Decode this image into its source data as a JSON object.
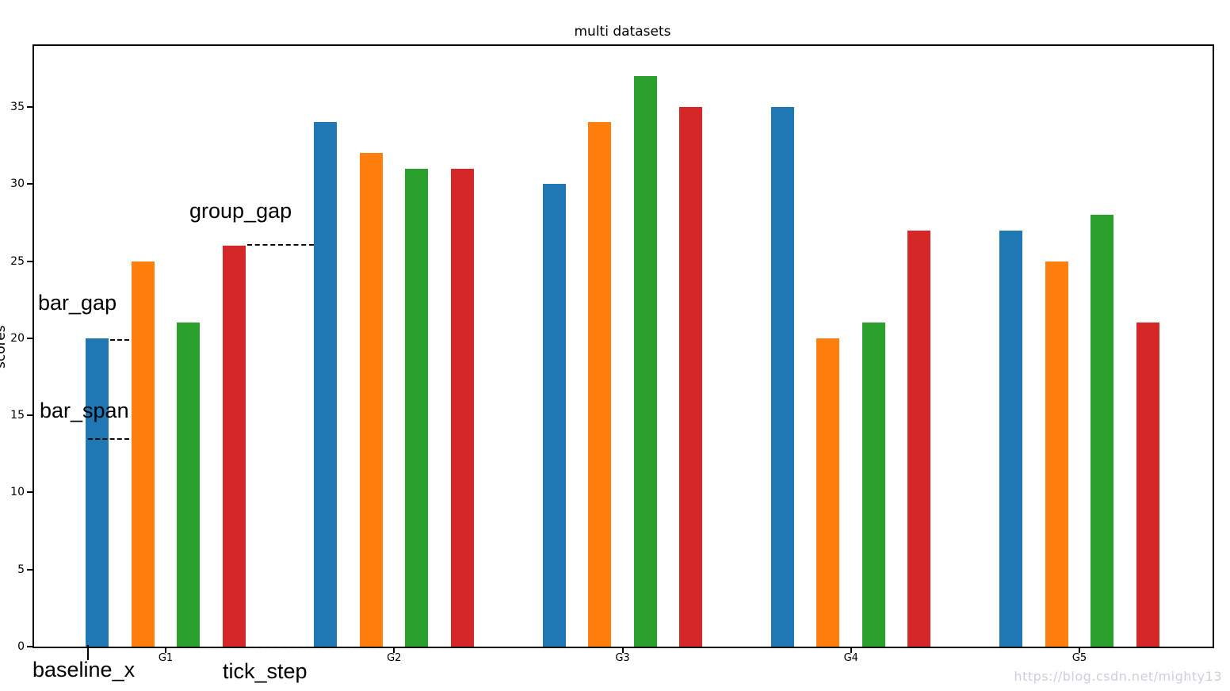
{
  "title": "multi datasets",
  "ylabel": "scores",
  "watermark": "https://blog.csdn.net/mighty13",
  "annotations": {
    "group_gap": "group_gap",
    "bar_gap": "bar_gap",
    "bar_span": "bar_span",
    "baseline_x": "baseline_x",
    "tick_step": "tick_step"
  },
  "chart_data": {
    "type": "bar",
    "title": "multi datasets",
    "xlabel": "",
    "ylabel": "scores",
    "categories": [
      "G1",
      "G2",
      "G3",
      "G4",
      "G5"
    ],
    "series": [
      {
        "name": "blue",
        "color": "#1f77b4",
        "values": [
          20,
          34,
          30,
          35,
          27
        ]
      },
      {
        "name": "orange",
        "color": "#ff7f0e",
        "values": [
          25,
          32,
          34,
          20,
          25
        ]
      },
      {
        "name": "green",
        "color": "#2ca02c",
        "values": [
          21,
          31,
          37,
          21,
          28
        ]
      },
      {
        "name": "red",
        "color": "#d62728",
        "values": [
          26,
          31,
          35,
          27,
          21
        ]
      }
    ],
    "y_ticks": [
      0,
      5,
      10,
      15,
      20,
      25,
      30,
      35
    ],
    "ylim": [
      0,
      39
    ],
    "grid": false,
    "legend": "none"
  }
}
